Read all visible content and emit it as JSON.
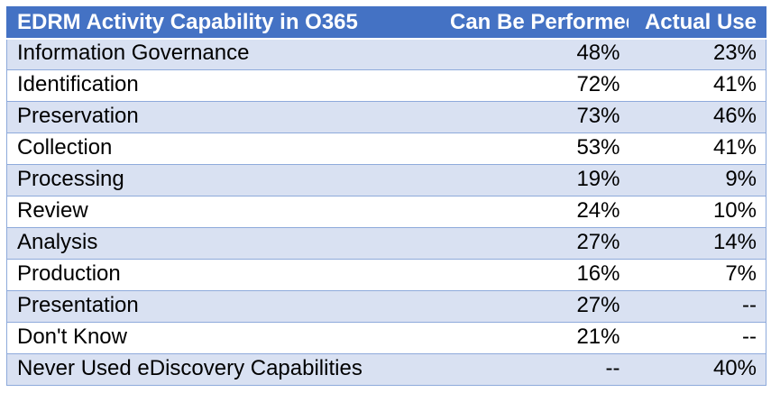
{
  "chart_data": {
    "type": "table",
    "title": "EDRM Activity Capability in O365",
    "columns": [
      "EDRM Activity Capability in O365",
      "Can Be Performed",
      "Actual Use"
    ],
    "rows": [
      {
        "activity": "Information Governance",
        "can_be_performed": "48%",
        "actual_use": "23%"
      },
      {
        "activity": "Identification",
        "can_be_performed": "72%",
        "actual_use": "41%"
      },
      {
        "activity": "Preservation",
        "can_be_performed": "73%",
        "actual_use": "46%"
      },
      {
        "activity": "Collection",
        "can_be_performed": "53%",
        "actual_use": "41%"
      },
      {
        "activity": "Processing",
        "can_be_performed": "19%",
        "actual_use": "9%"
      },
      {
        "activity": "Review",
        "can_be_performed": "24%",
        "actual_use": "10%"
      },
      {
        "activity": "Analysis",
        "can_be_performed": "27%",
        "actual_use": "14%"
      },
      {
        "activity": "Production",
        "can_be_performed": "16%",
        "actual_use": "7%"
      },
      {
        "activity": "Presentation",
        "can_be_performed": "27%",
        "actual_use": "--"
      },
      {
        "activity": "Don't Know",
        "can_be_performed": "21%",
        "actual_use": "--"
      },
      {
        "activity": "Never Used eDiscovery Capabilities",
        "can_be_performed": "--",
        "actual_use": "40%"
      }
    ],
    "missing_value_marker": "--",
    "layout": {
      "banded_rows": true,
      "value_alignment": "right"
    }
  },
  "colors": {
    "header_bg": "#4472C4",
    "header_text": "#FFFFFF",
    "band_bg": "#D9E1F2",
    "white_bg": "#FFFFFF",
    "border": "#8EAADB",
    "body_text": "#000000"
  }
}
